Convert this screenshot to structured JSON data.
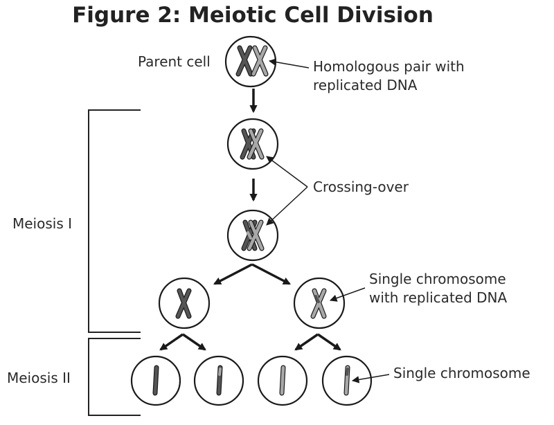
{
  "title": "Figure 2: Meiotic Cell Division",
  "labels": {
    "parent_cell": "Parent cell",
    "homologous_line1": "Homologous pair with",
    "homologous_line2": "replicated DNA",
    "crossing_over": "Crossing-over",
    "meiosis_1": "Meiosis I",
    "meiosis_2": "Meiosis II",
    "single_replicated_line1": "Single chromosome",
    "single_replicated_line2": "with replicated DNA",
    "single_chromosome": "Single chromosome"
  },
  "colors": {
    "dark_chromosome": "#555555",
    "light_chromosome": "#a8a8a8",
    "outline": "#1a1a1a"
  }
}
